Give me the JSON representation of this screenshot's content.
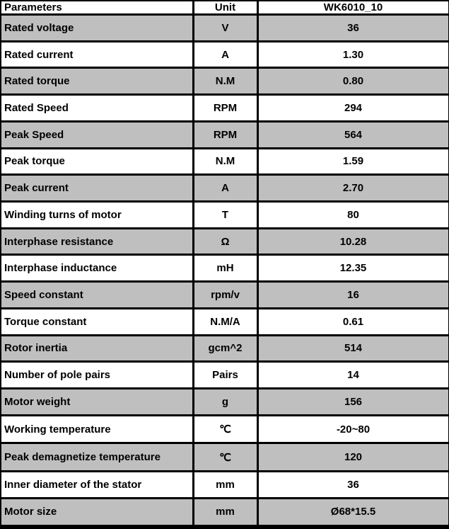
{
  "colors": {
    "shaded_row": "#bfbfbf",
    "grid": "#000000",
    "text": "#000000",
    "background": "#ffffff"
  },
  "table": {
    "header": {
      "param": "Parameters",
      "unit": "Unit",
      "model": "WK6010_10"
    },
    "rows": [
      {
        "param": "Rated voltage",
        "unit": "V",
        "value": "36"
      },
      {
        "param": "Rated current",
        "unit": "A",
        "value": "1.30"
      },
      {
        "param": "Rated torque",
        "unit": "N.M",
        "value": "0.80"
      },
      {
        "param": "Rated Speed",
        "unit": "RPM",
        "value": "294"
      },
      {
        "param": "Peak Speed",
        "unit": "RPM",
        "value": "564"
      },
      {
        "param": "Peak torque",
        "unit": "N.M",
        "value": "1.59"
      },
      {
        "param": "Peak current",
        "unit": "A",
        "value": "2.70"
      },
      {
        "param": "Winding turns of motor",
        "unit": "T",
        "value": "80"
      },
      {
        "param": "Interphase resistance",
        "unit": "Ω",
        "value": "10.28"
      },
      {
        "param": "Interphase inductance",
        "unit": "mH",
        "value": "12.35"
      },
      {
        "param": "Speed constant",
        "unit": "rpm/v",
        "value": "16"
      },
      {
        "param": "Torque constant",
        "unit": "N.M/A",
        "value": "0.61"
      },
      {
        "param": "Rotor inertia",
        "unit": "gcm^2",
        "value": "514"
      },
      {
        "param": "Number of pole pairs",
        "unit": "Pairs",
        "value": "14"
      },
      {
        "param": "Motor weight",
        "unit": "g",
        "value": "156"
      },
      {
        "param": "Working temperature",
        "unit": "℃",
        "value": "-20~80"
      },
      {
        "param": "Peak demagnetize temperature",
        "unit": "℃",
        "value": "120"
      },
      {
        "param": "Inner diameter of the stator",
        "unit": "mm",
        "value": "36"
      },
      {
        "param": "Motor size",
        "unit": "mm",
        "value": "Ø68*15.5"
      }
    ]
  }
}
